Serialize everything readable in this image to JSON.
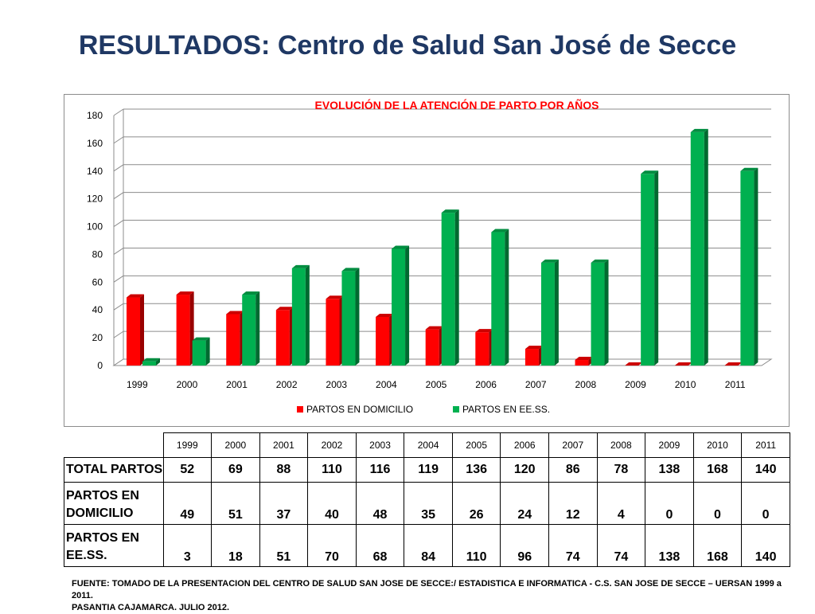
{
  "page": {
    "title": "RESULTADOS: Centro de Salud San José de Secce",
    "source_line1": "FUENTE: TOMADO DE LA PRESENTACION DEL  CENTRO DE SALUD SAN JOSE DE SECCE:/ ESTADISTICA E  INFORMATICA  - C.S. SAN JOSE DE SECCE – UERSAN 1999 a 2011.",
    "source_line2": "PASANTIA CAJAMARCA. JULIO 2012."
  },
  "chart_data": {
    "type": "bar",
    "title": "EVOLUCIÓN DE LA ATENCIÓN DE PARTO POR AÑOS",
    "categories": [
      "1999",
      "2000",
      "2001",
      "2002",
      "2003",
      "2004",
      "2005",
      "2006",
      "2007",
      "2008",
      "2009",
      "2010",
      "2011"
    ],
    "series": [
      {
        "name": "PARTOS EN DOMICILIO",
        "color": "#ff0000",
        "values": [
          49,
          51,
          37,
          40,
          48,
          35,
          26,
          24,
          12,
          4,
          0,
          0,
          0
        ]
      },
      {
        "name": "PARTOS EN EE.SS.",
        "color": "#00b050",
        "values": [
          3,
          18,
          51,
          70,
          68,
          84,
          110,
          96,
          74,
          74,
          138,
          168,
          140
        ]
      }
    ],
    "ylim": [
      0,
      180
    ],
    "yticks": [
      0,
      20,
      40,
      60,
      80,
      100,
      120,
      140,
      160,
      180
    ],
    "grid": true,
    "legend_position": "bottom",
    "title_color": "#ff0000"
  },
  "table": {
    "years": [
      "1999",
      "2000",
      "2001",
      "2002",
      "2003",
      "2004",
      "2005",
      "2006",
      "2007",
      "2008",
      "2009",
      "2010",
      "2011"
    ],
    "rows": [
      {
        "label": "TOTAL PARTOS",
        "values": [
          "52",
          "69",
          "88",
          "110",
          "116",
          "119",
          "136",
          "120",
          "86",
          "78",
          "138",
          "168",
          "140"
        ]
      },
      {
        "label_line1": "PARTOS EN",
        "label_line2": "DOMICILIO",
        "values": [
          "49",
          "51",
          "37",
          "40",
          "48",
          "35",
          "26",
          "24",
          "12",
          "4",
          "0",
          "0",
          "0"
        ]
      },
      {
        "label_line1": "PARTOS EN",
        "label_line2": "EE.SS.",
        "values": [
          "3",
          "18",
          "51",
          "70",
          "68",
          "84",
          "110",
          "96",
          "74",
          "74",
          "138",
          "168",
          "140"
        ]
      }
    ]
  }
}
